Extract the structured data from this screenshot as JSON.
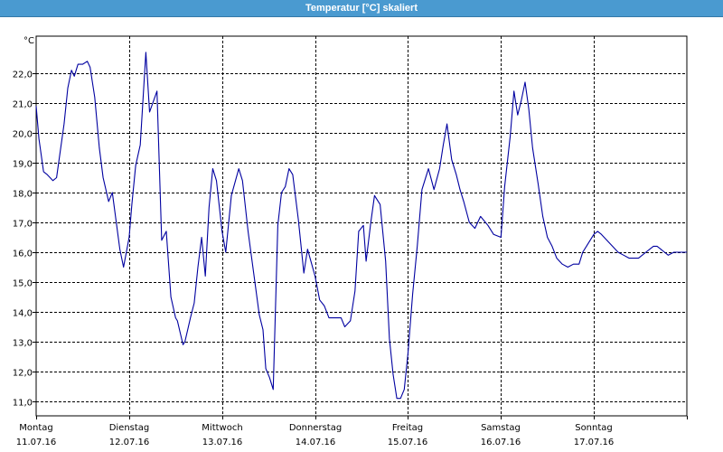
{
  "window": {
    "title": "Temperatur [°C] skaliert"
  },
  "chart_data": {
    "type": "line",
    "title": "Temperatur [°C] skaliert",
    "ylabel": "°C",
    "xlabel": "",
    "ylim": [
      10.5,
      23.0
    ],
    "grid": true,
    "y_ticks": [
      "22,0",
      "21,0",
      "20,0",
      "19,0",
      "18,0",
      "17,0",
      "16,0",
      "15,0",
      "14,0",
      "13,0",
      "12,0",
      "11,0"
    ],
    "y_tick_values": [
      22,
      21,
      20,
      19,
      18,
      17,
      16,
      15,
      14,
      13,
      12,
      11
    ],
    "x_ticks": [
      {
        "day": "Montag",
        "date": "11.07.16"
      },
      {
        "day": "Dienstag",
        "date": "12.07.16"
      },
      {
        "day": "Mittwoch",
        "date": "13.07.16"
      },
      {
        "day": "Donnerstag",
        "date": "14.07.16"
      },
      {
        "day": "Freitag",
        "date": "15.07.16"
      },
      {
        "day": "Samstag",
        "date": "16.07.16"
      },
      {
        "day": "Sonntag",
        "date": "17.07.16"
      }
    ],
    "series": [
      {
        "color": "#0000a0",
        "x_unit": "days since 11.07.16 00:00",
        "x": [
          0.0,
          0.03,
          0.08,
          0.12,
          0.18,
          0.22,
          0.3,
          0.34,
          0.38,
          0.41,
          0.45,
          0.5,
          0.55,
          0.58,
          0.63,
          0.68,
          0.72,
          0.78,
          0.82,
          0.9,
          0.94,
          1.0,
          1.03,
          1.07,
          1.12,
          1.18,
          1.22,
          1.3,
          1.35,
          1.4,
          1.45,
          1.5,
          1.52,
          1.55,
          1.58,
          1.6,
          1.63,
          1.66,
          1.7,
          1.74,
          1.78,
          1.82,
          1.86,
          1.9,
          1.94,
          2.0,
          2.04,
          2.1,
          2.18,
          2.22,
          2.28,
          2.34,
          2.4,
          2.44,
          2.47,
          2.51,
          2.55,
          2.6,
          2.64,
          2.68,
          2.72,
          2.76,
          2.82,
          2.88,
          2.92,
          3.0,
          3.05,
          3.1,
          3.15,
          3.2,
          3.28,
          3.32,
          3.38,
          3.43,
          3.47,
          3.52,
          3.55,
          3.6,
          3.64,
          3.7,
          3.76,
          3.8,
          3.84,
          3.88,
          3.92,
          3.96,
          4.0,
          4.05,
          4.1,
          4.15,
          4.22,
          4.28,
          4.34,
          4.38,
          4.42,
          4.47,
          4.52,
          4.56,
          4.6,
          4.66,
          4.72,
          4.78,
          4.86,
          4.92,
          5.0,
          5.04,
          5.1,
          5.14,
          5.18,
          5.22,
          5.26,
          5.3,
          5.34,
          5.4,
          5.45,
          5.5,
          5.55,
          5.6,
          5.66,
          5.72,
          5.78,
          5.84,
          5.88,
          5.92,
          5.96,
          6.0,
          6.04,
          6.08,
          6.14,
          6.2,
          6.26,
          6.32,
          6.38,
          6.44,
          6.48,
          6.52,
          6.56,
          6.6,
          6.64,
          6.68,
          6.72,
          6.76,
          6.8,
          6.86,
          6.92,
          6.96,
          7.0
        ],
        "y": [
          20.9,
          19.8,
          18.7,
          18.6,
          18.4,
          18.5,
          20.3,
          21.5,
          22.1,
          21.9,
          22.3,
          22.3,
          22.4,
          22.2,
          21.2,
          19.5,
          18.5,
          17.7,
          18.0,
          16.1,
          15.5,
          16.5,
          17.6,
          18.9,
          19.6,
          22.7,
          20.7,
          21.4,
          16.4,
          16.7,
          14.5,
          13.8,
          13.7,
          13.3,
          12.9,
          13.0,
          13.4,
          13.8,
          14.3,
          15.5,
          16.5,
          15.2,
          17.5,
          18.8,
          18.4,
          16.7,
          16.0,
          17.9,
          18.8,
          18.4,
          16.7,
          15.3,
          13.9,
          13.4,
          12.1,
          11.8,
          11.4,
          16.9,
          18.0,
          18.2,
          18.8,
          18.6,
          17.1,
          15.3,
          16.1,
          15.2,
          14.4,
          14.2,
          13.8,
          13.8,
          13.8,
          13.5,
          13.7,
          14.7,
          16.7,
          16.9,
          15.7,
          17.0,
          17.9,
          17.6,
          15.7,
          13.1,
          11.9,
          11.1,
          11.1,
          11.4,
          12.6,
          14.6,
          16.2,
          18.1,
          18.8,
          18.1,
          18.8,
          19.6,
          20.3,
          19.1,
          18.6,
          18.1,
          17.7,
          17.0,
          16.8,
          17.2,
          16.9,
          16.6,
          16.5,
          18.2,
          19.9,
          21.4,
          20.6,
          21.1,
          21.7,
          20.8,
          19.5,
          18.3,
          17.2,
          16.5,
          16.2,
          15.8,
          15.6,
          15.5,
          15.6,
          15.6,
          16.0,
          16.2,
          16.4,
          16.6,
          16.7,
          16.6,
          16.4,
          16.2,
          16.0,
          15.9,
          15.8,
          15.8,
          15.8,
          15.9,
          16.0,
          16.1,
          16.2,
          16.2,
          16.1,
          16.0,
          15.9,
          16.0,
          16.0,
          16.0,
          16.0
        ]
      }
    ]
  }
}
